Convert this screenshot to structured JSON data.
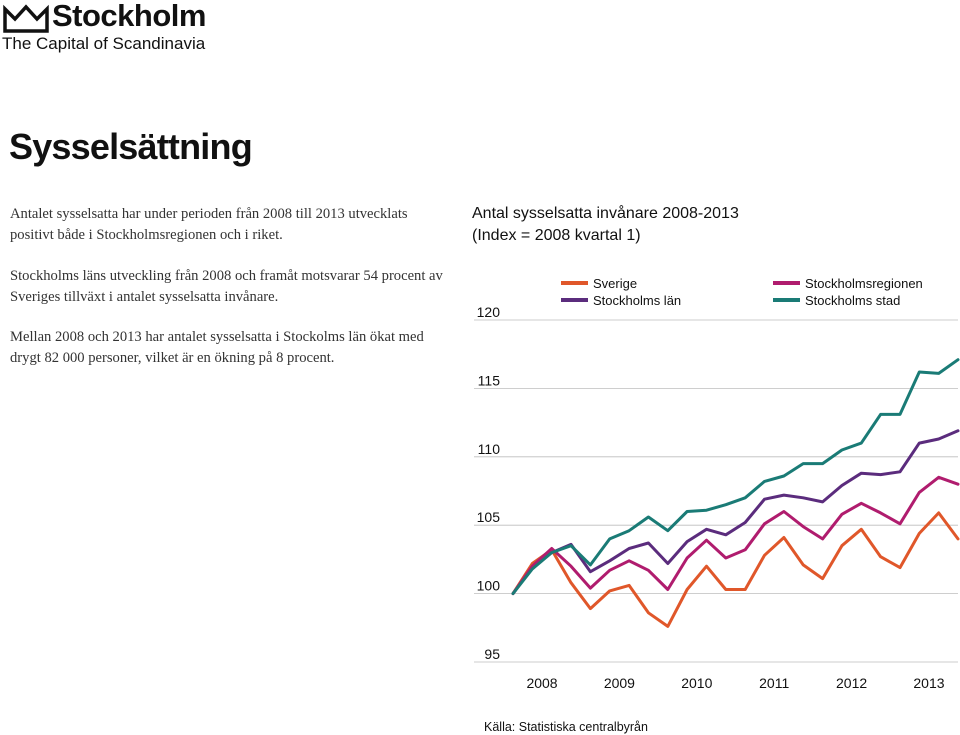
{
  "brand": {
    "name": "Stockholm",
    "tagline": "The Capital of Scandinavia"
  },
  "page": {
    "title": "Sysselsättning"
  },
  "text": {
    "p1": "Antalet sysselsatta har under perioden från 2008 till 2013 utvecklats positivt både i Stockholmsregionen och i riket.",
    "p2": "Stockholms läns utveckling från 2008 och framåt motsvarar 54 procent av Sveriges tillväxt i antalet sysselsatta invånare.",
    "p3": "Mellan 2008 och 2013 har antalet sysselsatta i Stockolms län ökat med drygt 82 000 personer, vilket är en ökning på 8 procent."
  },
  "chart_data": {
    "type": "line",
    "title_line1": "Antal sysselsatta invånare 2008-2013",
    "title_line2": "(Index = 2008 kvartal 1)",
    "source": "Källa: Statistiska centralbyrån",
    "x_labels": [
      "2008",
      "2009",
      "2010",
      "2011",
      "2012",
      "2013"
    ],
    "y_ticks": [
      95,
      100,
      105,
      110,
      115,
      120
    ],
    "ylim": [
      95,
      120
    ],
    "quarters": 24,
    "grid": true,
    "legend_position": "top",
    "series": [
      {
        "name": "Sverige",
        "color": "#e0572a",
        "values": [
          100,
          102.2,
          103.2,
          100.8,
          98.9,
          100.2,
          100.6,
          98.6,
          97.6,
          100.3,
          102,
          100.3,
          100.3,
          102.8,
          104.1,
          102.1,
          101.1,
          103.5,
          104.7,
          102.7,
          101.9,
          104.4,
          105.9,
          104
        ]
      },
      {
        "name": "Stockholms län",
        "color": "#5b2c7d",
        "values": [
          100,
          101.9,
          103,
          103.6,
          101.6,
          102.4,
          103.3,
          103.7,
          102.2,
          103.8,
          104.7,
          104.3,
          105.2,
          106.9,
          107.2,
          107,
          106.7,
          107.9,
          108.8,
          108.7,
          108.9,
          111,
          111.3,
          111.9
        ]
      },
      {
        "name": "Stockholmsregionen",
        "color": "#b01c6e",
        "values": [
          100,
          102,
          103.3,
          102,
          100.4,
          101.7,
          102.4,
          101.7,
          100.3,
          102.6,
          103.9,
          102.6,
          103.2,
          105.1,
          106,
          104.9,
          104,
          105.8,
          106.6,
          105.9,
          105.1,
          107.4,
          108.5,
          108
        ]
      },
      {
        "name": "Stockholms stad",
        "color": "#1a7b76",
        "values": [
          100,
          101.8,
          103,
          103.5,
          102.1,
          104,
          104.6,
          105.6,
          104.6,
          106,
          106.1,
          106.5,
          107,
          108.2,
          108.6,
          109.5,
          109.5,
          110.5,
          111,
          113.1,
          113.1,
          116.2,
          116.1,
          117.1
        ]
      }
    ]
  }
}
